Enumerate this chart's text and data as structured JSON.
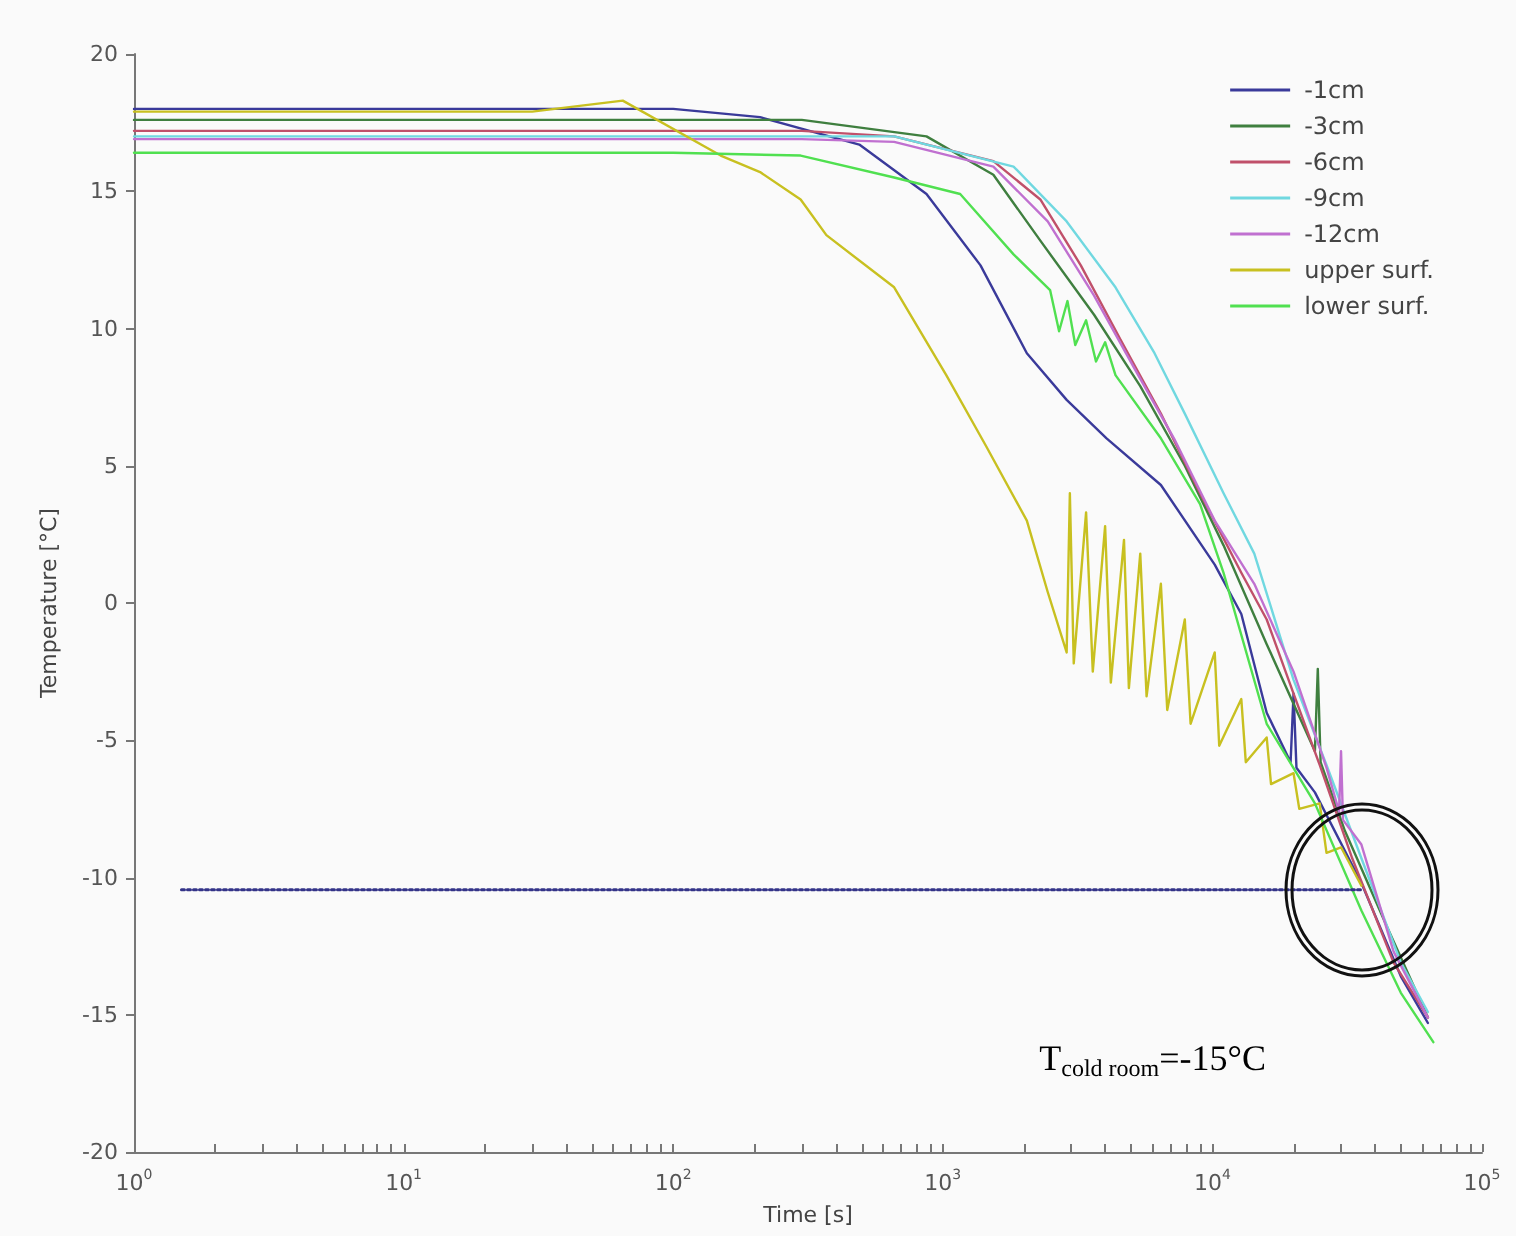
{
  "chart_data": {
    "type": "line",
    "xlabel": "Time [s]",
    "ylabel": "Temperature [°C]",
    "log": "x",
    "grid": false,
    "legend": "top right",
    "marker": "none",
    "line_style": "solid",
    "xlim": [
      1,
      100000
    ],
    "ylim": [
      -20,
      20
    ],
    "xticks": [
      {
        "value": 1,
        "label": "10$^{0}$"
      },
      {
        "value": 2,
        "label": null
      },
      {
        "value": 3,
        "label": null
      },
      {
        "value": 4,
        "label": null
      },
      {
        "value": 5,
        "label": null
      },
      {
        "value": 6,
        "label": null
      },
      {
        "value": 7,
        "label": null
      },
      {
        "value": 8,
        "label": null
      },
      {
        "value": 9,
        "label": null
      },
      {
        "value": 10,
        "label": "10$^{1}$"
      },
      {
        "value": 20,
        "label": null
      },
      {
        "value": 30,
        "label": null
      },
      {
        "value": 40,
        "label": null
      },
      {
        "value": 50,
        "label": null
      },
      {
        "value": 60,
        "label": null
      },
      {
        "value": 70,
        "label": null
      },
      {
        "value": 80,
        "label": null
      },
      {
        "value": 90,
        "label": null
      },
      {
        "value": 100,
        "label": "10$^{2}$"
      },
      {
        "value": 200,
        "label": null
      },
      {
        "value": 300,
        "label": null
      },
      {
        "value": 400,
        "label": null
      },
      {
        "value": 500,
        "label": null
      },
      {
        "value": 600,
        "label": null
      },
      {
        "value": 700,
        "label": null
      },
      {
        "value": 800,
        "label": null
      },
      {
        "value": 900,
        "label": null
      },
      {
        "value": 1000,
        "label": "10$^{3}$"
      },
      {
        "value": 2000,
        "label": null
      },
      {
        "value": 3000,
        "label": null
      },
      {
        "value": 4000,
        "label": null
      },
      {
        "value": 5000,
        "label": null
      },
      {
        "value": 6000,
        "label": null
      },
      {
        "value": 7000,
        "label": null
      },
      {
        "value": 8000,
        "label": null
      },
      {
        "value": 9000,
        "label": null
      },
      {
        "value": 10000,
        "label": "10$^{4}$"
      },
      {
        "value": 20000,
        "label": null
      },
      {
        "value": 30000,
        "label": null
      },
      {
        "value": 40000,
        "label": null
      },
      {
        "value": 50000,
        "label": null
      },
      {
        "value": 60000,
        "label": null
      },
      {
        "value": 70000,
        "label": null
      },
      {
        "value": 80000,
        "label": null
      },
      {
        "value": 90000,
        "label": null
      },
      {
        "value": 100000,
        "label": "10$^{5}$"
      }
    ],
    "yticks": [
      -20,
      -15,
      -10,
      -5,
      0,
      5,
      10,
      15,
      20
    ],
    "annotations": [
      "T$_{cold room}$=-15°C"
    ],
    "series": [
      {
        "name": "-1cm",
        "color": "#3a3a9a",
        "x": [
          1,
          100,
          210,
          490,
          870,
          1380,
          2050,
          2880,
          4050,
          6440,
          10200,
          12800,
          15900,
          19500,
          20000,
          20500,
          24000,
          35700,
          50000,
          63000
        ],
        "values": [
          18.0,
          18.0,
          17.7,
          16.7,
          14.9,
          12.3,
          9.1,
          7.4,
          6.0,
          4.3,
          1.4,
          -0.4,
          -4.0,
          -5.8,
          -3.3,
          -6.0,
          -6.9,
          -10.2,
          -13.6,
          -15.3
        ]
      },
      {
        "name": "-3cm",
        "color": "#3f7f3f",
        "x": [
          1,
          300,
          870,
          1540,
          2300,
          3640,
          5400,
          7900,
          11000,
          15900,
          24000,
          24600,
          25200,
          31000,
          44000,
          63000
        ],
        "values": [
          17.6,
          17.6,
          17.0,
          15.6,
          13.2,
          10.5,
          7.9,
          5.0,
          2.1,
          -1.5,
          -5.4,
          -2.4,
          -5.8,
          -8.3,
          -11.7,
          -15.1
        ]
      },
      {
        "name": "-6cm",
        "color": "#c0506a",
        "x": [
          1,
          300,
          660,
          1540,
          2300,
          3250,
          4560,
          6440,
          9000,
          12800,
          15900,
          20000,
          25000,
          33000,
          47000,
          63000
        ],
        "values": [
          17.2,
          17.2,
          17.0,
          16.1,
          14.7,
          12.3,
          9.6,
          6.9,
          4.0,
          1.1,
          -0.6,
          -3.3,
          -5.9,
          -9.3,
          -13.1,
          -15.1
        ]
      },
      {
        "name": "-9cm",
        "color": "#70d8e0",
        "x": [
          1,
          300,
          660,
          1830,
          2880,
          4370,
          6100,
          7900,
          11000,
          14300,
          20000,
          26500,
          35700,
          50000,
          63000
        ],
        "values": [
          17.0,
          17.0,
          17.0,
          15.9,
          13.9,
          11.5,
          9.1,
          6.9,
          4.0,
          1.8,
          -2.8,
          -5.9,
          -9.3,
          -13.1,
          -14.9
        ]
      },
      {
        "name": "-12cm",
        "color": "#c070d0",
        "x": [
          1,
          300,
          660,
          1540,
          2450,
          3640,
          5100,
          7200,
          10200,
          14300,
          20000,
          26500,
          29500,
          30000,
          30500,
          35700,
          47000,
          63000
        ],
        "values": [
          16.9,
          16.9,
          16.8,
          15.9,
          13.9,
          11.2,
          8.6,
          6.0,
          3.0,
          0.7,
          -2.5,
          -6.0,
          -7.6,
          -5.4,
          -7.9,
          -8.8,
          -12.7,
          -15.1
        ]
      },
      {
        "name": "upper surf.",
        "color": "#c8c020",
        "x": [
          1,
          30,
          65,
          150,
          210,
          297,
          370,
          660,
          1030,
          1450,
          2050,
          2450,
          2880,
          2960,
          3060,
          3400,
          3600,
          4000,
          4200,
          4700,
          4900,
          5400,
          5700,
          6440,
          6800,
          7900,
          8300,
          10200,
          10600,
          12800,
          13300,
          15900,
          16500,
          20000,
          21000,
          25000,
          26500,
          30000,
          35700
        ],
        "values": [
          17.9,
          17.9,
          18.3,
          16.3,
          15.7,
          14.7,
          13.4,
          11.5,
          8.3,
          5.7,
          3.0,
          0.4,
          -1.8,
          4.0,
          -2.2,
          3.3,
          -2.5,
          2.8,
          -2.9,
          2.3,
          -3.1,
          1.8,
          -3.4,
          0.7,
          -3.9,
          -0.6,
          -4.4,
          -1.8,
          -5.2,
          -3.5,
          -5.8,
          -4.9,
          -6.6,
          -6.2,
          -7.5,
          -7.3,
          -9.1,
          -8.9,
          -10.3
        ]
      },
      {
        "name": "lower surf.",
        "color": "#50e050",
        "x": [
          1,
          100,
          297,
          660,
          1160,
          1830,
          2500,
          2700,
          2900,
          3100,
          3400,
          3700,
          4000,
          4370,
          6440,
          9000,
          11000,
          15900,
          24000,
          35700,
          50000,
          66000
        ],
        "values": [
          16.4,
          16.4,
          16.3,
          15.5,
          14.9,
          12.7,
          11.4,
          9.9,
          11.0,
          9.4,
          10.3,
          8.8,
          9.5,
          8.3,
          6.0,
          3.6,
          1.1,
          -4.4,
          -7.3,
          -11.2,
          -14.2,
          -16.0
        ]
      },
      {
        "color": "#333388",
        "line_style": "dotted",
        "x": [
          1.5,
          35700
        ],
        "values": [
          -10.45,
          -10.45
        ]
      }
    ]
  }
}
